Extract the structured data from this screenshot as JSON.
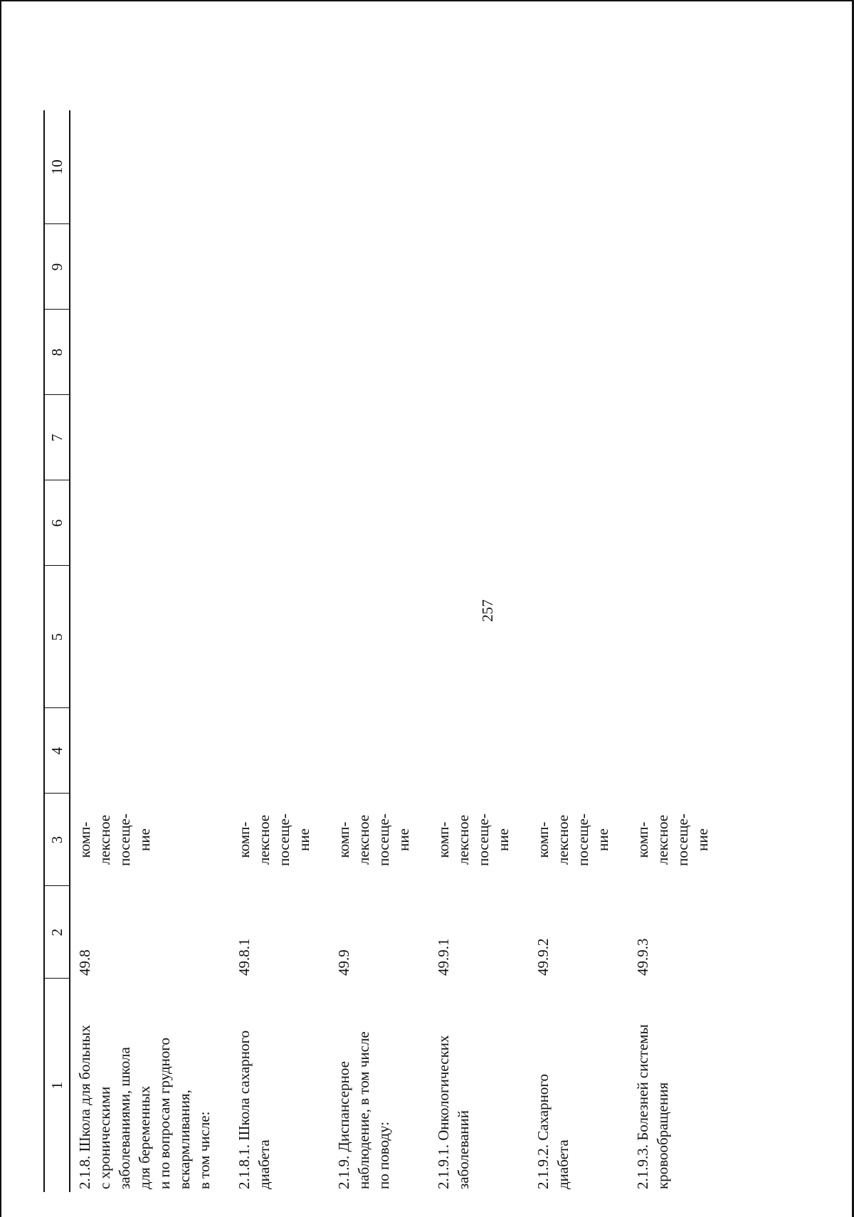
{
  "page_number": "257",
  "table": {
    "headers": [
      "1",
      "2",
      "3",
      "4",
      "5",
      "6",
      "7",
      "8",
      "9",
      "10"
    ],
    "rows": [
      {
        "name_lines": [
          "2.1.8. Школа для больных",
          "с хроническими",
          "заболеваниями, школа",
          "для беременных",
          "и по вопросам грудного",
          "вскармливания,",
          "в том числе:"
        ],
        "code": "49.8",
        "unit_lines": [
          "комп-",
          "лексное",
          "посеще-",
          "ние"
        ]
      },
      {
        "name_lines": [
          "2.1.8.1. Школа сахарного",
          "диабета"
        ],
        "code": "49.8.1",
        "unit_lines": [
          "комп-",
          "лексное",
          "посеще-",
          "ние"
        ]
      },
      {
        "name_lines": [
          "2.1.9. Диспансерное",
          "наблюдение, в том числе",
          "по поводу:"
        ],
        "code": "49.9",
        "unit_lines": [
          "комп-",
          "лексное",
          "посеще-",
          "ние"
        ]
      },
      {
        "name_lines": [
          "2.1.9.1. Онкологических",
          "заболеваний"
        ],
        "code": "49.9.1",
        "unit_lines": [
          "комп-",
          "лексное",
          "посеще-",
          "ние"
        ]
      },
      {
        "name_lines": [
          "2.1.9.2. Сахарного",
          "диабета"
        ],
        "code": "49.9.2",
        "unit_lines": [
          "комп-",
          "лексное",
          "посеще-",
          "ние"
        ]
      },
      {
        "name_lines": [
          "2.1.9.3. Болезней системы",
          "кровообращения"
        ],
        "code": "49.9.3",
        "unit_lines": [
          "комп-",
          "лексное",
          "посеще-",
          "ние"
        ]
      }
    ]
  }
}
